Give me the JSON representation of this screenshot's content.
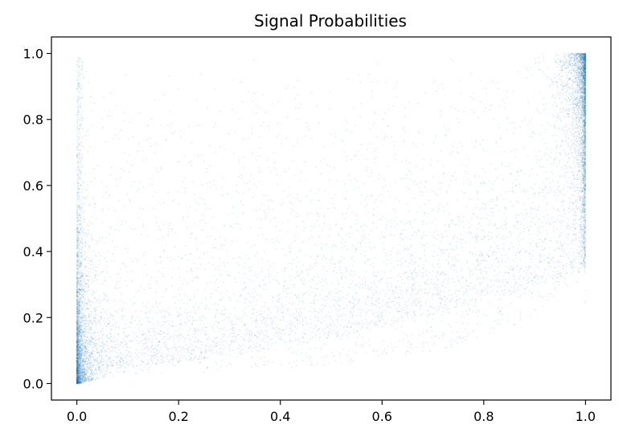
{
  "chart_data": {
    "type": "scatter",
    "title": "Signal Probabilities",
    "xlabel": "",
    "ylabel": "",
    "xlim": [
      -0.05,
      1.05
    ],
    "ylim": [
      -0.05,
      1.05
    ],
    "xticks": [
      0.0,
      0.2,
      0.4,
      0.6,
      0.8,
      1.0
    ],
    "yticks": [
      0.0,
      0.2,
      0.4,
      0.6,
      0.8,
      1.0
    ],
    "xtick_labels": [
      "0.0",
      "0.2",
      "0.4",
      "0.6",
      "0.8",
      "1.0"
    ],
    "ytick_labels": [
      "0.0",
      "0.2",
      "0.4",
      "0.6",
      "0.8",
      "1.0"
    ],
    "grid": false,
    "legend": "none",
    "marker_color": "#1f77b4",
    "marker_opacity": 0.12,
    "density_description_points": [
      {
        "x": 0.0,
        "y": 0.0
      },
      {
        "x": 0.02,
        "y": 0.15
      },
      {
        "x": 0.05,
        "y": 0.1
      },
      {
        "x": 0.2,
        "y": 0.15
      },
      {
        "x": 0.5,
        "y": 0.25
      },
      {
        "x": 0.8,
        "y": 0.4
      },
      {
        "x": 0.95,
        "y": 0.75
      },
      {
        "x": 1.0,
        "y": 1.0
      }
    ]
  }
}
